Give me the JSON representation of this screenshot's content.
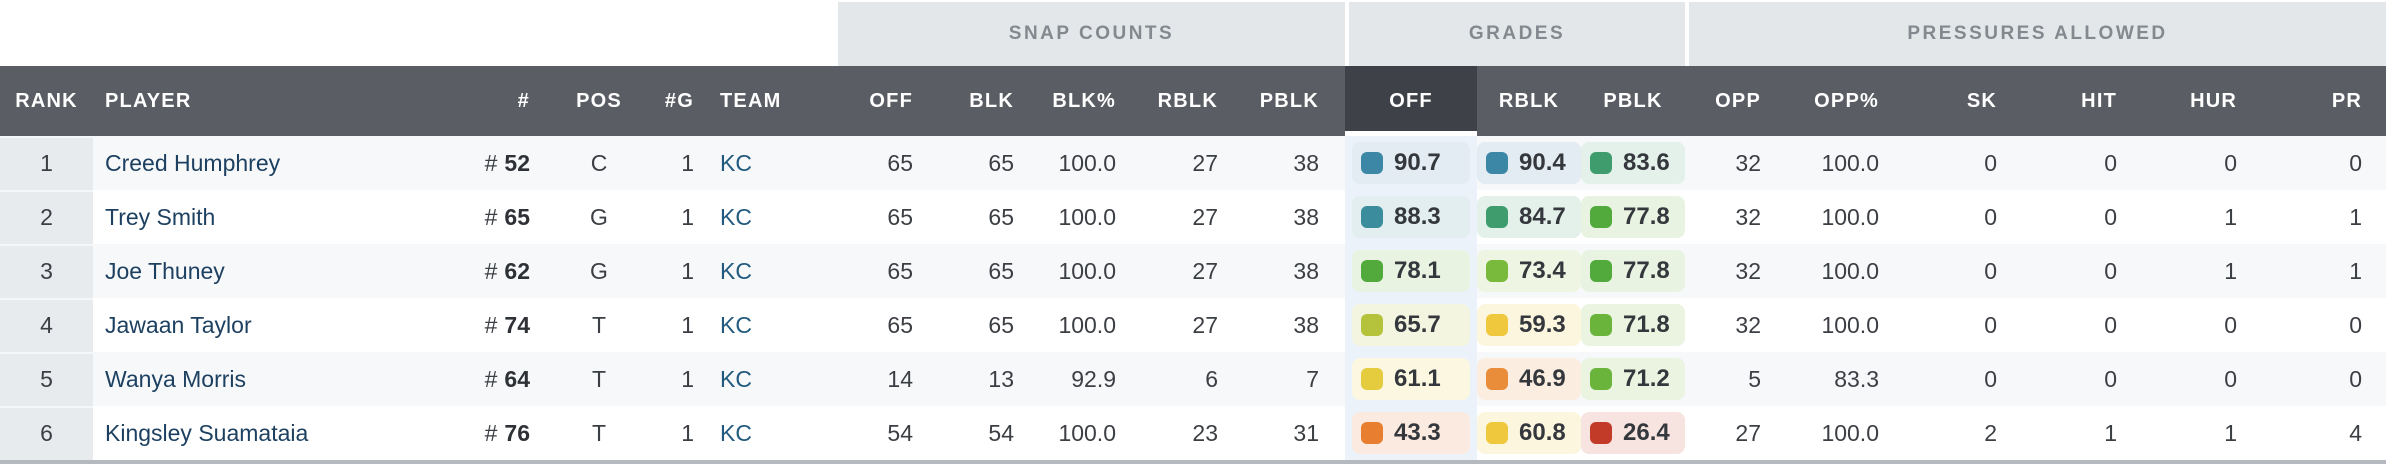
{
  "colors": {
    "header_bg": "#5a5d63",
    "header_active_bg": "#3e4147",
    "header_text": "#ffffff",
    "group_band_bg": "#e3e7ea",
    "group_text": "#83898f",
    "row_bg": "#ffffff",
    "row_alt_bg": "#f7f8fa",
    "rank_column_bg": "#e8ebed",
    "sorted_column_tint": "#ebf2f9",
    "player_link": "#1d4061",
    "team_link": "#215a7e",
    "sort_underline": "#ffffff",
    "bottom_bar": "#b3b9be"
  },
  "table": {
    "jersey_prefix": "#",
    "sorted_column": "GRADES OFF",
    "groups": {
      "snap_counts": "SNAP COUNTS",
      "grades": "GRADES",
      "pressures": "PRESSURES ALLOWED"
    },
    "columns": {
      "rank": "RANK",
      "player": "PLAYER",
      "jersey": "#",
      "pos": "POS",
      "games": "#G",
      "team": "TEAM",
      "snap_off": "OFF",
      "snap_blk": "BLK",
      "snap_blk_pct": "BLK%",
      "snap_rblk": "RBLK",
      "snap_pblk": "PBLK",
      "grade_off": "OFF",
      "grade_rblk": "RBLK",
      "grade_pblk": "PBLK",
      "opp": "OPP",
      "opp_pct": "OPP%",
      "sk": "SK",
      "hit": "HIT",
      "hur": "HUR",
      "pr": "PR"
    },
    "rows": [
      {
        "rank": "1",
        "player": "Creed Humphrey",
        "jersey": "52",
        "pos": "C",
        "games": "1",
        "team": "KC",
        "snap_off": "65",
        "snap_blk": "65",
        "snap_blk_pct": "100.0",
        "snap_rblk": "27",
        "snap_pblk": "38",
        "grade_off": {
          "value": "90.7",
          "color": "#3d87a6",
          "bg": "#e2ecf2"
        },
        "grade_rblk": {
          "value": "90.4",
          "color": "#3d87a6",
          "bg": "#e2ecf2"
        },
        "grade_pblk": {
          "value": "83.6",
          "color": "#3f9d6d",
          "bg": "#e4f1ea"
        },
        "opp": "32",
        "opp_pct": "100.0",
        "sk": "0",
        "hit": "0",
        "hur": "0",
        "pr": "0"
      },
      {
        "rank": "2",
        "player": "Trey Smith",
        "jersey": "65",
        "pos": "G",
        "games": "1",
        "team": "KC",
        "snap_off": "65",
        "snap_blk": "65",
        "snap_blk_pct": "100.0",
        "snap_rblk": "27",
        "snap_pblk": "38",
        "grade_off": {
          "value": "88.3",
          "color": "#3b8c9c",
          "bg": "#e2eef0"
        },
        "grade_rblk": {
          "value": "84.7",
          "color": "#3f9d6d",
          "bg": "#e4f1ea"
        },
        "grade_pblk": {
          "value": "77.8",
          "color": "#52aa3d",
          "bg": "#e8f3e2"
        },
        "opp": "32",
        "opp_pct": "100.0",
        "sk": "0",
        "hit": "0",
        "hur": "1",
        "pr": "1"
      },
      {
        "rank": "3",
        "player": "Joe Thuney",
        "jersey": "62",
        "pos": "G",
        "games": "1",
        "team": "KC",
        "snap_off": "65",
        "snap_blk": "65",
        "snap_blk_pct": "100.0",
        "snap_rblk": "27",
        "snap_pblk": "38",
        "grade_off": {
          "value": "78.1",
          "color": "#52aa3d",
          "bg": "#e8f3e2"
        },
        "grade_rblk": {
          "value": "73.4",
          "color": "#79b93c",
          "bg": "#eef5e2"
        },
        "grade_pblk": {
          "value": "77.8",
          "color": "#52aa3d",
          "bg": "#e8f3e2"
        },
        "opp": "32",
        "opp_pct": "100.0",
        "sk": "0",
        "hit": "0",
        "hur": "1",
        "pr": "1"
      },
      {
        "rank": "4",
        "player": "Jawaan Taylor",
        "jersey": "74",
        "pos": "T",
        "games": "1",
        "team": "KC",
        "snap_off": "65",
        "snap_blk": "65",
        "snap_blk_pct": "100.0",
        "snap_rblk": "27",
        "snap_pblk": "38",
        "grade_off": {
          "value": "65.7",
          "color": "#b4c23c",
          "bg": "#f4f5e1"
        },
        "grade_rblk": {
          "value": "59.3",
          "color": "#f0c83e",
          "bg": "#fdf6df"
        },
        "grade_pblk": {
          "value": "71.8",
          "color": "#6ab43c",
          "bg": "#eaf4e1"
        },
        "opp": "32",
        "opp_pct": "100.0",
        "sk": "0",
        "hit": "0",
        "hur": "0",
        "pr": "0"
      },
      {
        "rank": "5",
        "player": "Wanya Morris",
        "jersey": "64",
        "pos": "T",
        "games": "1",
        "team": "KC",
        "snap_off": "14",
        "snap_blk": "13",
        "snap_blk_pct": "92.9",
        "snap_rblk": "6",
        "snap_pblk": "7",
        "grade_off": {
          "value": "61.1",
          "color": "#e5cb3e",
          "bg": "#fbf7e0"
        },
        "grade_rblk": {
          "value": "46.9",
          "color": "#e98d3b",
          "bg": "#fbeee0"
        },
        "grade_pblk": {
          "value": "71.2",
          "color": "#6ab43c",
          "bg": "#eaf4e1"
        },
        "opp": "5",
        "opp_pct": "83.3",
        "sk": "0",
        "hit": "0",
        "hur": "0",
        "pr": "0"
      },
      {
        "rank": "6",
        "player": "Kingsley Suamataia",
        "jersey": "76",
        "pos": "T",
        "games": "1",
        "team": "KC",
        "snap_off": "54",
        "snap_blk": "54",
        "snap_blk_pct": "100.0",
        "snap_rblk": "23",
        "snap_pblk": "31",
        "grade_off": {
          "value": "43.3",
          "color": "#e87e30",
          "bg": "#fbeadf"
        },
        "grade_rblk": {
          "value": "60.8",
          "color": "#f0c83e",
          "bg": "#fdf6df"
        },
        "grade_pblk": {
          "value": "26.4",
          "color": "#c23b28",
          "bg": "#f7e4e0"
        },
        "opp": "27",
        "opp_pct": "100.0",
        "sk": "2",
        "hit": "1",
        "hur": "1",
        "pr": "4"
      }
    ]
  }
}
